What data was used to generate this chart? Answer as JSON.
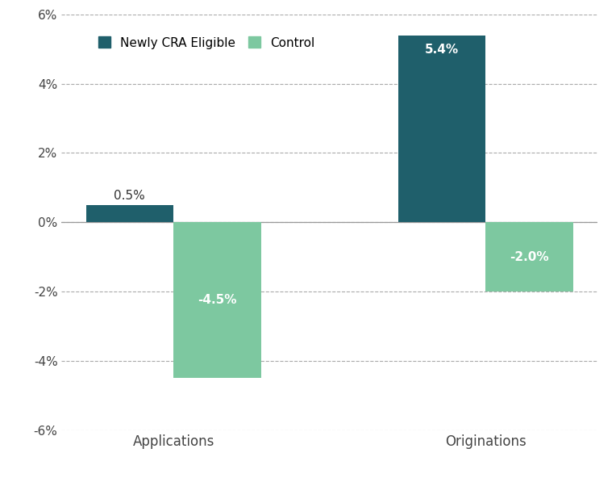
{
  "categories": [
    "Applications",
    "Originations"
  ],
  "newly_cra_eligible": [
    0.5,
    5.4
  ],
  "control": [
    -4.5,
    -2.0
  ],
  "newly_cra_color": "#1f5f6b",
  "control_color": "#7dc8a0",
  "bar_width": 0.28,
  "ylim": [
    -6,
    6
  ],
  "yticks": [
    -6,
    -4,
    -2,
    0,
    2,
    4,
    6
  ],
  "ytick_labels": [
    "-6%",
    "-4%",
    "-2%",
    "0%",
    "2%",
    "4%",
    "6%"
  ],
  "legend_newly": "Newly CRA Eligible",
  "legend_control": "Control",
  "background_color": "#ffffff",
  "grid_color": "#aaaaaa",
  "label_fontsize": 12,
  "tick_fontsize": 11,
  "legend_fontsize": 11,
  "value_label_color_inside": "#ffffff",
  "value_label_color_outside": "#333333",
  "value_label_fontsize": 11
}
